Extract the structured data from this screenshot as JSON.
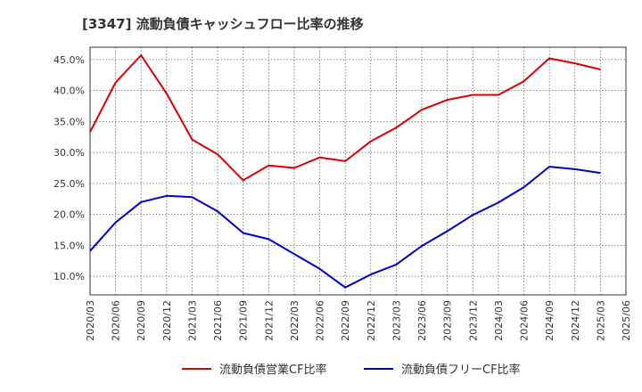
{
  "chart_data": {
    "type": "line",
    "title": "[3347]  流動負債キャッシュフロー比率の推移",
    "xlabel": "",
    "ylabel": "",
    "ylim": [
      7.0,
      47.0
    ],
    "yticks": [
      10,
      15,
      20,
      25,
      30,
      35,
      40,
      45
    ],
    "ytick_labels": [
      "10.0%",
      "15.0%",
      "20.0%",
      "25.0%",
      "30.0%",
      "35.0%",
      "40.0%",
      "45.0%"
    ],
    "categories": [
      "2020/03",
      "2020/06",
      "2020/09",
      "2020/12",
      "2021/03",
      "2021/06",
      "2021/09",
      "2021/12",
      "2022/03",
      "2022/06",
      "2022/09",
      "2022/12",
      "2023/03",
      "2023/06",
      "2023/09",
      "2023/12",
      "2024/03",
      "2024/06",
      "2024/09",
      "2024/12",
      "2025/03",
      "2025/06"
    ],
    "grid": true,
    "legend_position": "bottom",
    "series": [
      {
        "name": "流動負債営業CF比率",
        "color": "#dd0000",
        "values": [
          33.3,
          41.3,
          45.7,
          39.5,
          32.1,
          29.7,
          25.5,
          27.9,
          27.5,
          29.2,
          28.6,
          31.8,
          34.0,
          36.9,
          38.5,
          39.3,
          39.3,
          41.5,
          45.2,
          44.4,
          43.4,
          null
        ]
      },
      {
        "name": "流動負債フリーCF比率",
        "color": "#0000cc",
        "values": [
          14.1,
          18.7,
          22.0,
          23.0,
          22.8,
          20.5,
          17.0,
          16.0,
          13.6,
          11.2,
          8.2,
          10.3,
          11.9,
          14.9,
          17.3,
          19.9,
          21.9,
          24.4,
          27.7,
          27.3,
          26.7,
          null
        ]
      }
    ]
  }
}
